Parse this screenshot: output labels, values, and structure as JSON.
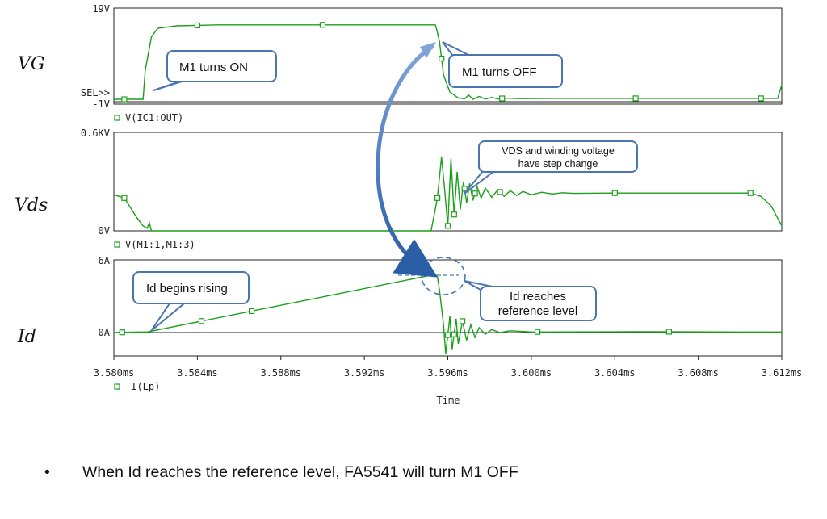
{
  "chart_data": {
    "type": "line",
    "xlabel": "Time",
    "x_unit": "ms",
    "xlim": [
      3.58,
      3.612
    ],
    "x_ticks": [
      "3.580ms",
      "3.584ms",
      "3.588ms",
      "3.592ms",
      "3.596ms",
      "3.600ms",
      "3.604ms",
      "3.608ms",
      "3.612ms"
    ],
    "color": "#1aa01a",
    "panels": [
      {
        "ylabel": "VG",
        "y_top_label": "19V",
        "y_bottom_label": "-1V",
        "sel_marker": "SEL>>",
        "ylim": [
          -1,
          19
        ],
        "legend": "V(IC1:OUT)",
        "points": [
          [
            3.58,
            0
          ],
          [
            3.581,
            0
          ],
          [
            3.5814,
            0
          ],
          [
            3.5815,
            6
          ],
          [
            3.5818,
            13
          ],
          [
            3.5821,
            14.8
          ],
          [
            3.583,
            15.3
          ],
          [
            3.585,
            15.5
          ],
          [
            3.59,
            15.5
          ],
          [
            3.594,
            15.5
          ],
          [
            3.5954,
            15.5
          ],
          [
            3.5955,
            14
          ],
          [
            3.5956,
            12
          ],
          [
            3.5958,
            5
          ],
          [
            3.5961,
            1.5
          ],
          [
            3.5965,
            0.3
          ],
          [
            3.5968,
            0.1
          ],
          [
            3.597,
            0.9
          ],
          [
            3.5972,
            0
          ],
          [
            3.5975,
            0.6
          ],
          [
            3.5978,
            0.05
          ],
          [
            3.5981,
            0.4
          ],
          [
            3.5984,
            0.1
          ],
          [
            3.5988,
            0.25
          ],
          [
            3.5995,
            0.15
          ],
          [
            3.601,
            0.2
          ],
          [
            3.605,
            0.2
          ],
          [
            3.61,
            0.2
          ],
          [
            3.6118,
            0.2
          ],
          [
            3.612,
            3
          ]
        ],
        "markers": [
          3.5805,
          3.584,
          3.59,
          3.5957,
          3.5986,
          3.605,
          3.611
        ]
      },
      {
        "ylabel": "Vds",
        "y_top_label": "0.6KV",
        "y_bottom_label": "0V",
        "ylim": [
          0,
          600
        ],
        "legend": "V(M1:1,M1:3)",
        "points": [
          [
            3.58,
            220
          ],
          [
            3.5805,
            200
          ],
          [
            3.5808,
            140
          ],
          [
            3.5811,
            80
          ],
          [
            3.5814,
            30
          ],
          [
            3.5816,
            15
          ],
          [
            3.5817,
            50
          ],
          [
            3.5818,
            0
          ],
          [
            3.5825,
            0
          ],
          [
            3.59,
            0
          ],
          [
            3.5952,
            0
          ],
          [
            3.5955,
            200
          ],
          [
            3.5957,
            450
          ],
          [
            3.59585,
            250
          ],
          [
            3.596,
            30
          ],
          [
            3.59615,
            440
          ],
          [
            3.5963,
            100
          ],
          [
            3.59645,
            360
          ],
          [
            3.5966,
            130
          ],
          [
            3.59675,
            300
          ],
          [
            3.5969,
            170
          ],
          [
            3.59705,
            290
          ],
          [
            3.5972,
            185
          ],
          [
            3.5974,
            270
          ],
          [
            3.5976,
            200
          ],
          [
            3.5978,
            260
          ],
          [
            3.5981,
            205
          ],
          [
            3.5984,
            250
          ],
          [
            3.5987,
            210
          ],
          [
            3.599,
            245
          ],
          [
            3.5993,
            215
          ],
          [
            3.5996,
            240
          ],
          [
            3.6,
            220
          ],
          [
            3.6005,
            235
          ],
          [
            3.601,
            225
          ],
          [
            3.6015,
            232
          ],
          [
            3.602,
            228
          ],
          [
            3.604,
            230
          ],
          [
            3.608,
            230
          ],
          [
            3.6105,
            230
          ],
          [
            3.611,
            210
          ],
          [
            3.6115,
            150
          ],
          [
            3.612,
            30
          ]
        ],
        "markers": [
          3.5805,
          3.5955,
          3.596,
          3.5963,
          3.5968,
          3.5973,
          3.5985,
          3.604,
          3.6105
        ]
      },
      {
        "ylabel": "Id",
        "y_top_label": "6A",
        "y_bottom_label": "0A",
        "ylim": [
          -2,
          6
        ],
        "zero_line": 0,
        "legend": "-I(Lp)",
        "points": [
          [
            3.58,
            -0.05
          ],
          [
            3.5812,
            0
          ],
          [
            3.5816,
            0
          ],
          [
            3.5954,
            4.8
          ],
          [
            3.5955,
            4.6
          ],
          [
            3.5956,
            3.5
          ],
          [
            3.5958,
            0.5
          ],
          [
            3.5959,
            -1.8
          ],
          [
            3.5961,
            1.3
          ],
          [
            3.5962,
            -1.5
          ],
          [
            3.5964,
            1.1
          ],
          [
            3.5965,
            -1.0
          ],
          [
            3.5967,
            0.9
          ],
          [
            3.5969,
            -0.7
          ],
          [
            3.5971,
            0.6
          ],
          [
            3.5973,
            -0.45
          ],
          [
            3.5975,
            0.35
          ],
          [
            3.5978,
            -0.2
          ],
          [
            3.5981,
            0.2
          ],
          [
            3.5985,
            -0.05
          ],
          [
            3.599,
            0.1
          ],
          [
            3.6,
            0
          ],
          [
            3.605,
            0.02
          ],
          [
            3.61,
            0
          ],
          [
            3.612,
            0
          ]
        ],
        "markers": [
          3.5804,
          3.5842,
          3.5866,
          3.596,
          3.5963,
          3.5967,
          3.6003,
          3.6066
        ]
      }
    ],
    "annotations": {
      "m1_on": "M1 turns ON",
      "m1_off": "M1 turns OFF",
      "vds_step_line1": "VDS and winding voltage",
      "vds_step_line2": "have step change",
      "id_rising": "Id begins rising",
      "id_ref_line1": "Id reaches",
      "id_ref_line2": "reference level"
    }
  },
  "footer": {
    "bullet": "•",
    "text": "When Id reaches the reference level, FA5541 will turn M1 OFF"
  },
  "colors": {
    "trace": "#1aa01a",
    "callout_border": "#4a76b0",
    "arrow": "#3d6fb8"
  }
}
